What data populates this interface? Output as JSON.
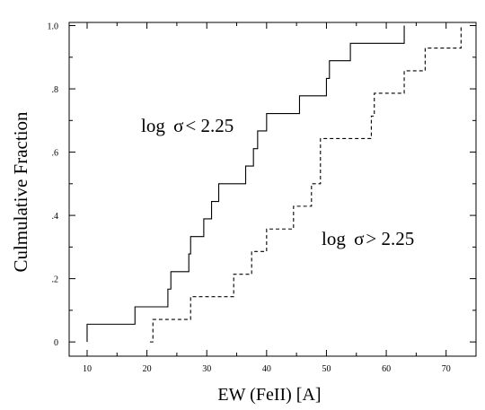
{
  "chart_data": {
    "type": "line",
    "title": "",
    "xlabel": "EW (FeII) [A]",
    "ylabel": "Culmulative Fraction",
    "xlim": [
      7,
      75
    ],
    "ylim": [
      -0.045,
      1.01
    ],
    "grid": false,
    "legend": "none",
    "x_ticks": [
      10,
      20,
      30,
      40,
      50,
      60,
      70
    ],
    "x_tick_labels": [
      "10",
      "20",
      "30",
      "40",
      "50",
      "60",
      "70"
    ],
    "y_ticks": [
      0,
      0.2,
      0.4,
      0.6,
      0.8,
      1.0
    ],
    "y_tick_labels": [
      "0",
      ".2",
      ".4",
      ".6",
      ".8",
      "1.0"
    ],
    "series": [
      {
        "style": "solid",
        "x": [
          10,
          18,
          23.5,
          24,
          27,
          27.3,
          29.5,
          30.8,
          32,
          36.5,
          37.8,
          38.5,
          40,
          45.5,
          50,
          50.5,
          54,
          63
        ],
        "y": [
          0.056,
          0.111,
          0.167,
          0.222,
          0.278,
          0.333,
          0.389,
          0.444,
          0.5,
          0.556,
          0.611,
          0.667,
          0.722,
          0.778,
          0.833,
          0.889,
          0.944,
          1.0
        ]
      },
      {
        "style": "dashed",
        "x": [
          20.5,
          21,
          27.3,
          34.5,
          37.5,
          40,
          44.5,
          47.5,
          49,
          57.5,
          58,
          63,
          66.5,
          72.5
        ],
        "y": [
          0.0,
          0.071,
          0.143,
          0.214,
          0.286,
          0.357,
          0.429,
          0.5,
          0.643,
          0.714,
          0.786,
          0.857,
          0.929,
          1.0
        ]
      }
    ],
    "annotations": [
      {
        "prefix": "log ",
        "symbol": "σ",
        "relation": "< 2.25"
      },
      {
        "prefix": "log ",
        "symbol": "σ",
        "relation": "> 2.25"
      }
    ]
  },
  "colors": {
    "line": "#000000",
    "background": "#ffffff"
  }
}
